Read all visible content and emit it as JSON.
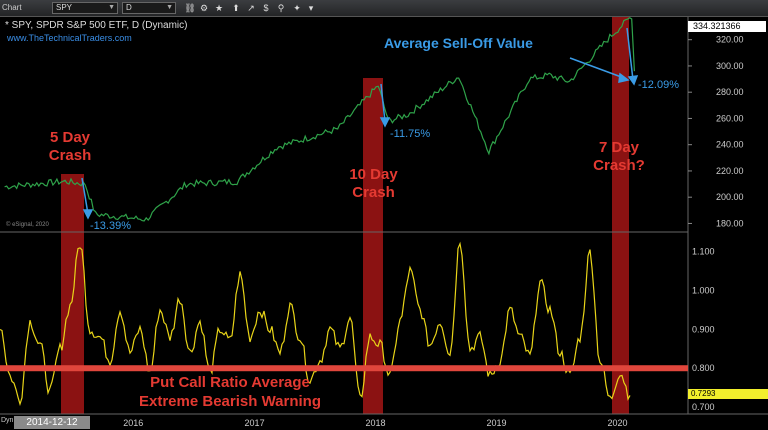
{
  "toolbar": {
    "tab_label": "Chart",
    "symbol": "SPY",
    "interval": "D"
  },
  "chart_header": {
    "title": "* SPY, SPDR S&P 500 ETF, D (Dynamic)",
    "website": "www.TheTechnicalTraders.com",
    "watermark": "© eSignal, 2020"
  },
  "last_price": "334.321366",
  "pcr_last": "0.7293",
  "date_readout": "2014-12-12",
  "dyn_label": "Dyn",
  "annotations": {
    "crash5": "5 Day\nCrash",
    "crash10": "10 Day\nCrash",
    "crash7": "7 Day\nCrash?",
    "sell_off": "Average Sell-Off Value",
    "pct_1339": "-13.39%",
    "pct_1175": "-11.75%",
    "pct_1209": "-12.09%",
    "pcr_line1": "Put Call Ratio Average",
    "pcr_line2": "Extreme Bearish Warning"
  },
  "chart_data": [
    {
      "type": "line",
      "title": "SPY, SPDR S&P 500 ETF, D (Dynamic)",
      "x_tick_labels": [
        "2016",
        "2017",
        "2018",
        "2019",
        "2020"
      ],
      "x": [
        "2014-12",
        "2015-06",
        "2015-08",
        "2015-09",
        "2016-02",
        "2016-06",
        "2016-11",
        "2017-03",
        "2017-09",
        "2018-01",
        "2018-02",
        "2018-04",
        "2018-09",
        "2018-12",
        "2019-04",
        "2019-06",
        "2019-08",
        "2019-12",
        "2020-02-19",
        "2020-02-27"
      ],
      "values": [
        208,
        212,
        210,
        187,
        183,
        210,
        212,
        238,
        252,
        285,
        258,
        263,
        292,
        235,
        290,
        293,
        288,
        322,
        338,
        296
      ],
      "ylim": [
        175,
        335
      ],
      "y_ticks": [
        180,
        200,
        220,
        240,
        260,
        280,
        300,
        320
      ],
      "grid": false
    },
    {
      "type": "line",
      "title": "Put Call Ratio Average",
      "values": [
        0.91,
        0.78,
        0.72,
        0.92,
        0.86,
        0.74,
        0.85,
        0.96,
        1.12,
        0.9,
        0.88,
        0.82,
        0.95,
        0.84,
        0.9,
        0.79,
        0.95,
        0.88,
        0.98,
        0.84,
        0.92,
        0.79,
        0.9,
        0.87,
        1.04,
        0.88,
        0.95,
        0.9,
        0.84,
        0.96,
        0.88,
        0.77,
        0.82,
        0.9,
        0.85,
        0.93,
        0.72,
        0.88,
        0.86,
        0.78,
        0.92,
        1.05,
        0.95,
        0.86,
        0.92,
        0.84,
        1.13,
        0.85,
        0.88,
        0.78,
        0.82,
        0.95,
        0.88,
        0.83,
        1.02,
        0.95,
        0.84,
        0.78,
        0.88,
        1.1,
        0.82,
        0.72,
        0.79,
        0.73
      ],
      "ylim": [
        0.69,
        1.14
      ],
      "y_ticks": [
        0.7,
        0.8,
        0.9,
        1.0,
        1.1
      ],
      "reference_line": 0.8,
      "grid": false
    }
  ],
  "colors": {
    "price_line": "#2fa34a",
    "pcr_line": "#e8d418",
    "highlight": "#8b1212",
    "reference": "#e0463c",
    "arrow": "#3a9be6"
  }
}
